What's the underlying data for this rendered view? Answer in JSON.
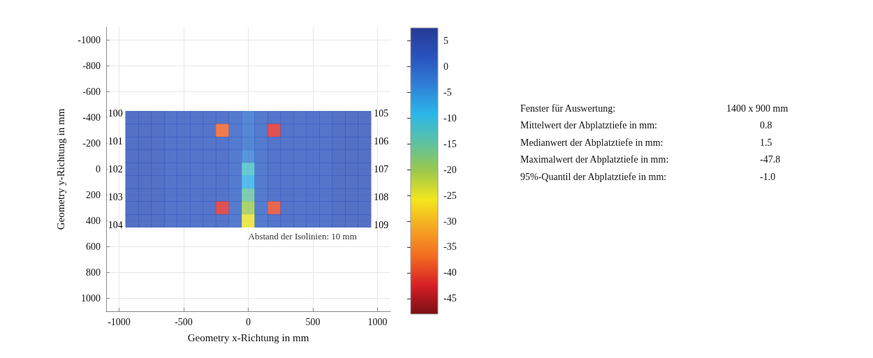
{
  "chart_data": {
    "type": "scatter",
    "xlabel": "Geometry x-Richtung in mm",
    "ylabel": "Geometry y-Richtung in mm",
    "xlim": [
      -1100,
      1100
    ],
    "xticks": [
      -1000,
      -500,
      0,
      500,
      1000
    ],
    "ylim": [
      1100,
      -1100
    ],
    "yticks": [
      -1000,
      -800,
      -600,
      -400,
      -200,
      0,
      200,
      400,
      600,
      800,
      1000
    ],
    "clim": [
      -48,
      7.5
    ],
    "cticks": [
      5,
      0,
      -5,
      -10,
      -15,
      -20,
      -25,
      -30,
      -35,
      -40,
      -45
    ],
    "grid": true,
    "marker": "square",
    "x": [
      -900,
      -800,
      -700,
      -600,
      -500,
      -400,
      -300,
      -200,
      -100,
      0,
      100,
      200,
      300,
      400,
      500,
      600,
      700,
      800,
      900,
      -900,
      -800,
      -700,
      -600,
      -500,
      -400,
      -300,
      -200,
      -100,
      0,
      100,
      200,
      300,
      400,
      500,
      600,
      700,
      800,
      900,
      -900,
      -800,
      -700,
      -600,
      -500,
      -400,
      -300,
      -200,
      -100,
      0,
      100,
      200,
      300,
      400,
      500,
      600,
      700,
      800,
      900,
      -900,
      -800,
      -700,
      -600,
      -500,
      -400,
      -300,
      -200,
      -100,
      0,
      100,
      200,
      300,
      400,
      500,
      600,
      700,
      800,
      900,
      -900,
      -800,
      -700,
      -600,
      -500,
      -400,
      -300,
      -200,
      -100,
      0,
      100,
      200,
      300,
      400,
      500,
      600,
      700,
      800,
      900,
      -900,
      -800,
      -700,
      -600,
      -500,
      -400,
      -300,
      -200,
      -100,
      0,
      100,
      200,
      300,
      400,
      500,
      600,
      700,
      800,
      900,
      -900,
      -800,
      -700,
      -600,
      -500,
      -400,
      -300,
      -200,
      -100,
      0,
      100,
      200,
      300,
      400,
      500,
      600,
      700,
      800,
      900,
      -900,
      -800,
      -700,
      -600,
      -500,
      -400,
      -300,
      -200,
      -100,
      0,
      100,
      200,
      300,
      400,
      500,
      600,
      700,
      800,
      900,
      -900,
      -800,
      -700,
      -600,
      -500,
      -400,
      -300,
      -200,
      -100,
      0,
      100,
      200,
      300,
      400,
      500,
      600,
      700,
      800,
      900
    ],
    "values": [
      -400,
      -400,
      -400,
      -400,
      -400,
      -400,
      -400,
      -400,
      -400,
      -400,
      -400,
      -400,
      -400,
      -400,
      -400,
      -400,
      -400,
      -400,
      -400,
      -300,
      -300,
      -300,
      -300,
      -300,
      -300,
      -300,
      -300,
      -300,
      -300,
      -300,
      -300,
      -300,
      -300,
      -300,
      -300,
      -300,
      -300,
      -300,
      -200,
      -200,
      -200,
      -200,
      -200,
      -200,
      -200,
      -200,
      -200,
      -200,
      -200,
      -200,
      -200,
      -200,
      -200,
      -200,
      -200,
      -200,
      -200,
      -100,
      -100,
      -100,
      -100,
      -100,
      -100,
      -100,
      -100,
      -100,
      -100,
      -100,
      -100,
      -100,
      -100,
      -100,
      -100,
      -100,
      -100,
      -100,
      0,
      0,
      0,
      0,
      0,
      0,
      0,
      0,
      0,
      0,
      0,
      0,
      0,
      0,
      0,
      0,
      0,
      0,
      0,
      100,
      100,
      100,
      100,
      100,
      100,
      100,
      100,
      100,
      100,
      100,
      100,
      100,
      100,
      100,
      100,
      100,
      100,
      100,
      200,
      200,
      200,
      200,
      200,
      200,
      200,
      200,
      200,
      200,
      200,
      200,
      200,
      200,
      200,
      200,
      200,
      200,
      200,
      300,
      300,
      300,
      300,
      300,
      300,
      300,
      300,
      300,
      300,
      300,
      300,
      300,
      300,
      300,
      300,
      300,
      300,
      300,
      400,
      400,
      400,
      400,
      400,
      400,
      400,
      400,
      400,
      400,
      400,
      400,
      400,
      400,
      400,
      400,
      400,
      400,
      400
    ],
    "cvalues": [
      3,
      3,
      3,
      2,
      2,
      2,
      2,
      2,
      1,
      -1,
      1,
      2,
      2,
      2,
      2,
      2,
      3,
      3,
      3,
      3,
      3,
      3,
      2,
      2,
      2,
      2,
      -38,
      1,
      -1,
      1,
      -42,
      2,
      2,
      2,
      2,
      3,
      3,
      3,
      3,
      3,
      3,
      2,
      2,
      2,
      2,
      2,
      1,
      -1,
      1,
      2,
      2,
      2,
      2,
      2,
      3,
      3,
      3,
      3,
      3,
      3,
      2,
      2,
      2,
      2,
      2,
      1,
      -3,
      1,
      2,
      2,
      2,
      2,
      2,
      3,
      3,
      3,
      3,
      3,
      3,
      2,
      2,
      2,
      2,
      2,
      1,
      -12,
      1,
      2,
      2,
      2,
      2,
      2,
      3,
      3,
      3,
      3,
      3,
      3,
      2,
      2,
      2,
      2,
      2,
      1,
      -8,
      1,
      2,
      2,
      2,
      2,
      2,
      3,
      3,
      3,
      3,
      3,
      3,
      2,
      2,
      2,
      2,
      2,
      1,
      -15,
      1,
      2,
      2,
      2,
      2,
      2,
      3,
      3,
      3,
      3,
      3,
      3,
      2,
      2,
      2,
      2,
      -42,
      1,
      -20,
      1,
      -40,
      2,
      2,
      2,
      2,
      3,
      3,
      3,
      3,
      3,
      3,
      2,
      2,
      2,
      2,
      2,
      1,
      -25,
      1,
      2,
      2,
      2,
      2,
      2,
      3,
      3,
      3
    ],
    "annotations": [
      "Abstand der Isolinien: 10 mm",
      "Fenster für Auswertung:",
      "1400 x 900 mm",
      "Mittelwert der Abplatztiefe in mm:",
      "0.8",
      "Medianwert der Abplatztiefe in mm:",
      "1.5",
      "Maximalwert der Abplatztiefe in mm:",
      "-47.8",
      "95%-Quantil der Abplatztiefe in mm:",
      "-1.0",
      "100",
      "101",
      "102",
      "103",
      "104",
      "105",
      "106",
      "107",
      "108",
      "109"
    ]
  }
}
